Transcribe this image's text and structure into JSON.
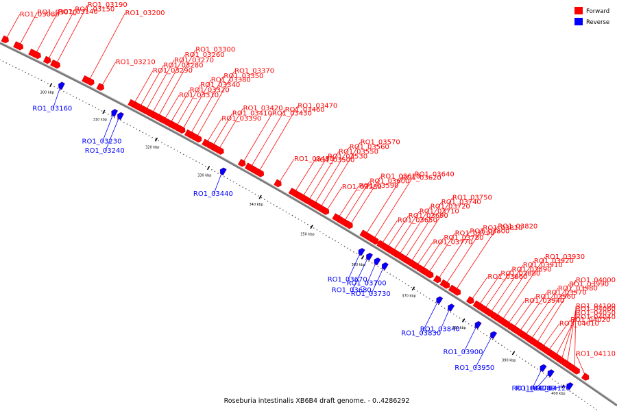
{
  "caption": "Roseburia intestinalis XB6B4 draft genome. - 0..4286292",
  "legend": {
    "forward": {
      "label": "Forward",
      "color": "#ff0000"
    },
    "reverse": {
      "label": "Reverse",
      "color": "#0000ff"
    }
  },
  "ticks": [
    "300 kbp",
    "310 kbp",
    "320 kbp",
    "330 kbp",
    "340 kbp",
    "350 kbp",
    "360 kbp",
    "370 kbp",
    "380 kbp",
    "390 kbp",
    "400 kbp"
  ],
  "forward_genes": [
    {
      "id": "RO1_03080",
      "pos": 0.0
    },
    {
      "id": "RO1_03070",
      "pos": 0.4
    },
    {
      "id": "RO1_03140",
      "pos": 0.8
    },
    {
      "id": "RO1_03150",
      "pos": 1.1
    },
    {
      "id": "RO1_03190",
      "pos": 1.3
    },
    {
      "id": "RO1_03200",
      "pos": 2.1
    },
    {
      "id": "RO1_03210",
      "pos": 2.4
    },
    {
      "id": "RO1_03290",
      "pos": 3.2
    },
    {
      "id": "RO1_03280",
      "pos": 3.35
    },
    {
      "id": "RO1_03270",
      "pos": 3.5
    },
    {
      "id": "RO1_03260",
      "pos": 3.65
    },
    {
      "id": "RO1_03300",
      "pos": 3.8
    },
    {
      "id": "RO1_03310",
      "pos": 3.95
    },
    {
      "id": "RO1_03320",
      "pos": 4.1
    },
    {
      "id": "RO1_03340",
      "pos": 4.25
    },
    {
      "id": "RO1_03380",
      "pos": 4.4
    },
    {
      "id": "RO1_03350",
      "pos": 4.6
    },
    {
      "id": "RO1_03370",
      "pos": 4.75
    },
    {
      "id": "RO1_03390",
      "pos": 5.0
    },
    {
      "id": "RO1_03410",
      "pos": 5.15
    },
    {
      "id": "RO1_03420",
      "pos": 5.3
    },
    {
      "id": "RO1_03430",
      "pos": 5.9
    },
    {
      "id": "RO1_03460",
      "pos": 6.1
    },
    {
      "id": "RO1_03470",
      "pos": 6.3
    },
    {
      "id": "RO1_03480",
      "pos": 6.8
    },
    {
      "id": "RO1_03500",
      "pos": 7.2
    },
    {
      "id": "RO1_03530",
      "pos": 7.4
    },
    {
      "id": "RO1_03550",
      "pos": 7.55
    },
    {
      "id": "RO1_03560",
      "pos": 7.7
    },
    {
      "id": "RO1_03570",
      "pos": 7.85
    },
    {
      "id": "RO1_03580",
      "pos": 8.0
    },
    {
      "id": "RO1_03590",
      "pos": 8.3
    },
    {
      "id": "RO1_03600",
      "pos": 8.45
    },
    {
      "id": "RO1_03610",
      "pos": 8.6
    },
    {
      "id": "RO1_03620",
      "pos": 9.0
    },
    {
      "id": "RO1_03640",
      "pos": 9.2
    },
    {
      "id": "RO1_03650",
      "pos": 9.4
    },
    {
      "id": "RO1_03690",
      "pos": 9.55
    },
    {
      "id": "RO1_03710",
      "pos": 9.7
    },
    {
      "id": "RO1_03720",
      "pos": 9.85
    },
    {
      "id": "RO1_03740",
      "pos": 10.0
    },
    {
      "id": "RO1_03750",
      "pos": 10.15
    },
    {
      "id": "RO1_03770",
      "pos": 10.3
    },
    {
      "id": "RO1_03780",
      "pos": 10.45
    },
    {
      "id": "RO1_03790",
      "pos": 10.6
    },
    {
      "id": "RO1_03800",
      "pos": 10.85
    },
    {
      "id": "RO1_03810",
      "pos": 11.05
    },
    {
      "id": "RO1_03820",
      "pos": 11.3
    },
    {
      "id": "RO1_03860",
      "pos": 11.7
    },
    {
      "id": "RO1_03880",
      "pos": 11.9
    },
    {
      "id": "RO1_03890",
      "pos": 12.05
    },
    {
      "id": "RO1_03910",
      "pos": 12.2
    },
    {
      "id": "RO1_03920",
      "pos": 12.35
    },
    {
      "id": "RO1_03930",
      "pos": 12.5
    },
    {
      "id": "RO1_03940",
      "pos": 12.65
    },
    {
      "id": "RO1_03960",
      "pos": 12.8
    },
    {
      "id": "RO1_03970",
      "pos": 12.95
    },
    {
      "id": "RO1_03980",
      "pos": 13.1
    },
    {
      "id": "RO1_03990",
      "pos": 13.25
    },
    {
      "id": "RO1_04000",
      "pos": 13.4
    },
    {
      "id": "RO1_04010",
      "pos": 13.55
    },
    {
      "id": "RO1_04020",
      "pos": 13.7
    },
    {
      "id": "RO1_04040",
      "pos": 13.9
    },
    {
      "id": "RO1_04050",
      "pos": 14.05
    },
    {
      "id": "RO1_04060",
      "pos": 14.2
    },
    {
      "id": "RO1_04100",
      "pos": 14.4
    },
    {
      "id": "RO1_04110",
      "pos": 14.7
    }
  ],
  "reverse_genes": [
    {
      "id": "RO1_03160",
      "pos": 1.6
    },
    {
      "id": "RO1_03230",
      "pos": 2.9
    },
    {
      "id": "RO1_03240",
      "pos": 3.05
    },
    {
      "id": "RO1_03440",
      "pos": 5.6
    },
    {
      "id": "RO1_03670",
      "pos": 9.1
    },
    {
      "id": "RO1_03680",
      "pos": 9.3
    },
    {
      "id": "RO1_03700",
      "pos": 9.5
    },
    {
      "id": "RO1_03730",
      "pos": 9.7
    },
    {
      "id": "RO1_03830",
      "pos": 11.1
    },
    {
      "id": "RO1_03840",
      "pos": 11.4
    },
    {
      "id": "RO1_03900",
      "pos": 12.1
    },
    {
      "id": "RO1_03950",
      "pos": 12.5
    },
    {
      "id": "RO1_04070",
      "pos": 13.8
    },
    {
      "id": "RO1_04080",
      "pos": 14.0
    },
    {
      "id": "RO1_04120",
      "pos": 14.5
    }
  ]
}
